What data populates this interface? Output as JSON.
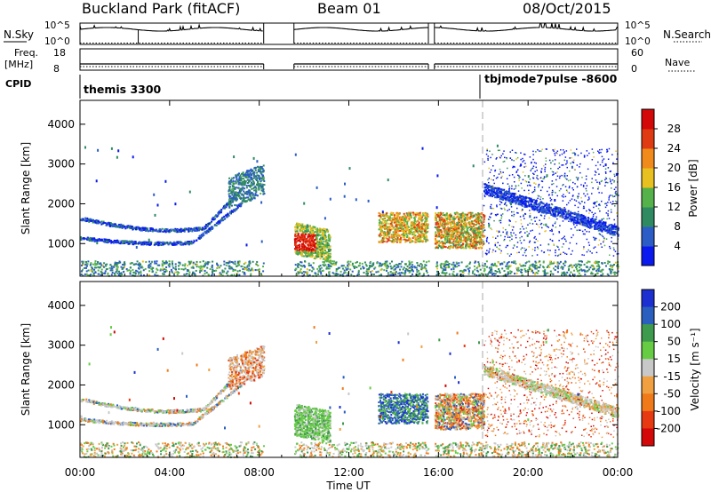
{
  "header": {
    "site": "Buckland Park (fitACF)",
    "beam": "Beam 01",
    "date": "08/Oct/2015"
  },
  "side_labels": {
    "nsky": "N.Sky",
    "nsearch": "N.Search",
    "freq": "Freq.",
    "freq_unit": "[MHz]",
    "nave": "Nave",
    "cpid": "CPID"
  },
  "cpid_labels": [
    "themis 3300",
    "tbjmode7pulse -8600"
  ],
  "chart_data": [
    {
      "type": "line",
      "panel": "noise",
      "left_ticks": [
        "10^5",
        "10^0"
      ],
      "right_ticks": [
        "10^5",
        "10^0"
      ],
      "data_gaps_ut": [
        [
          8.2,
          9.55
        ],
        [
          15.55,
          15.82
        ]
      ],
      "scan_resets_ut": [
        2.6
      ]
    },
    {
      "type": "line",
      "panel": "frequency_nave",
      "left_ticks": [
        "18",
        "8"
      ],
      "right_ticks": [
        "60",
        "0"
      ],
      "frequency_mhz_range": [
        8,
        18
      ],
      "nave_range": [
        0,
        60
      ]
    },
    {
      "type": "heatmap",
      "panel": "power",
      "ylabel": "Slant Range [km]",
      "y_ticks": [
        1000,
        2000,
        3000,
        4000
      ],
      "ylim": [
        180,
        4600
      ],
      "xlim_hours": [
        0,
        24
      ],
      "colorbar": {
        "label": "Power [dB]",
        "ticks": [
          4,
          8,
          12,
          16,
          20,
          24,
          28
        ],
        "colors": [
          "#0a1aee",
          "#2c5dc7",
          "#2f8a62",
          "#55b24a",
          "#e8c020",
          "#f08a1a",
          "#e03a12",
          "#d40808"
        ]
      }
    },
    {
      "type": "heatmap",
      "panel": "velocity",
      "ylabel": "Slant Range [km]",
      "y_ticks": [
        1000,
        2000,
        3000,
        4000
      ],
      "ylim": [
        180,
        4600
      ],
      "xlim_hours": [
        0,
        24
      ],
      "colorbar": {
        "label": "Velocity [m s⁻¹]",
        "ticks": [
          "200",
          "100",
          "50",
          "15",
          "-15",
          "-50",
          "-100",
          "-200"
        ],
        "colors": [
          "#1c2fd0",
          "#2a5fc0",
          "#3e9a4c",
          "#66cc44",
          "#c8c8c8",
          "#f0a040",
          "#f07a1a",
          "#e83a12",
          "#d40808"
        ]
      }
    }
  ],
  "x_axis": {
    "label": "Time UT",
    "ticks": [
      "00:00",
      "04:00",
      "08:00",
      "12:00",
      "16:00",
      "20:00",
      "00:00"
    ],
    "tick_hours": [
      0,
      4,
      8,
      12,
      16,
      20,
      24
    ]
  },
  "vertical_marker_ut": 18.0
}
